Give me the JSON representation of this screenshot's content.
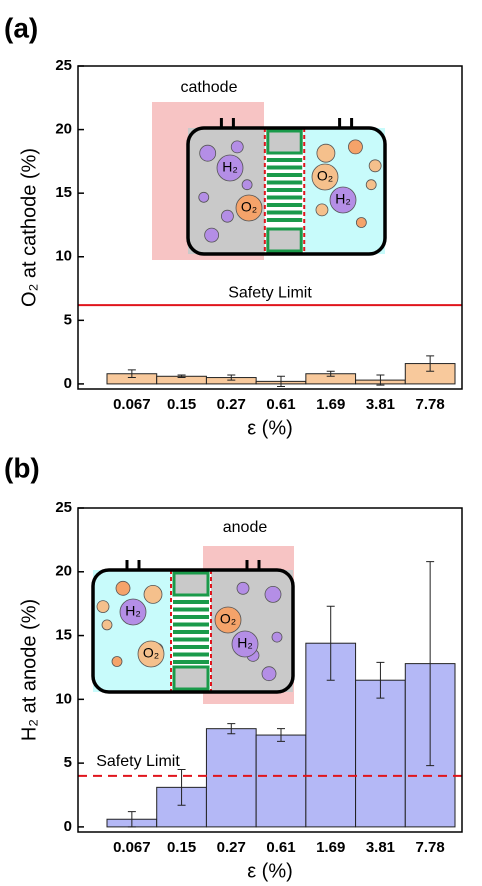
{
  "chart_data": [
    {
      "type": "bar",
      "panel_label": "(a)",
      "xlabel": "ε (%)",
      "ylabel": "O₂ at cathode (%)",
      "categories": [
        "0.067",
        "0.15",
        "0.27",
        "0.61",
        "1.69",
        "3.81",
        "7.78"
      ],
      "values": [
        0.8,
        0.6,
        0.5,
        0.2,
        0.8,
        0.3,
        1.6
      ],
      "errors": [
        0.3,
        0.1,
        0.2,
        0.4,
        0.2,
        0.4,
        0.6
      ],
      "color": "#f8c99c",
      "ylim": [
        -0.4,
        25
      ],
      "yticks": [
        0,
        5,
        10,
        15,
        20,
        25
      ],
      "safety_limit": {
        "value": 6.2,
        "label": "Safety Limit",
        "color": "#e0141c",
        "dashed": false
      },
      "inset": {
        "label": "cathode",
        "bubble_labels": [
          "H₂",
          "O₂",
          "O₂",
          "H₂"
        ]
      }
    },
    {
      "type": "bar",
      "panel_label": "(b)",
      "xlabel": "ε (%)",
      "ylabel": "H₂ at anode (%)",
      "categories": [
        "0.067",
        "0.15",
        "0.27",
        "0.61",
        "1.69",
        "3.81",
        "7.78"
      ],
      "values": [
        0.6,
        3.1,
        7.7,
        7.2,
        14.4,
        11.5,
        12.8
      ],
      "errors": [
        0.6,
        1.4,
        0.4,
        0.5,
        2.9,
        1.4,
        8.0
      ],
      "color": "#b4b8f6",
      "ylim": [
        -0.4,
        25
      ],
      "yticks": [
        0,
        5,
        10,
        15,
        20,
        25
      ],
      "safety_limit": {
        "value": 4,
        "label": "Safety Limit",
        "color": "#e0141c",
        "dashed": true
      },
      "inset": {
        "label": "anode",
        "bubble_labels": [
          "H₂",
          "O₂",
          "O₂",
          "H₂"
        ]
      }
    }
  ]
}
